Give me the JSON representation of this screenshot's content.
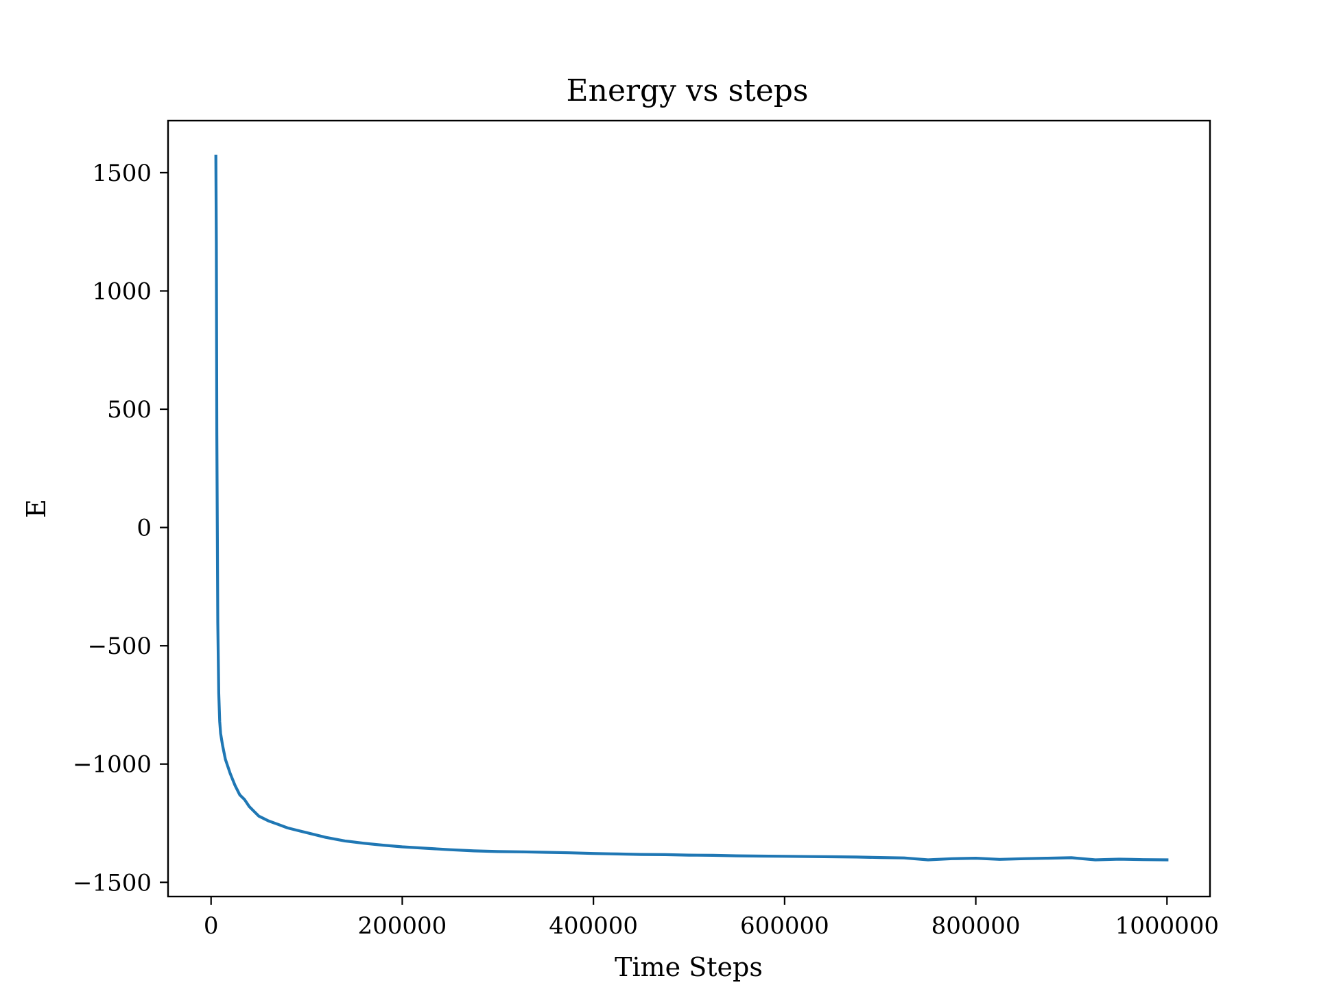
{
  "chart_data": {
    "type": "line",
    "title": "Energy vs steps",
    "xlabel": "Time Steps",
    "ylabel": "E",
    "xlim": [
      -45000,
      1045000
    ],
    "ylim": [
      -1560,
      1720
    ],
    "xticks": [
      0,
      200000,
      400000,
      600000,
      800000,
      1000000
    ],
    "xtick_labels": [
      "0",
      "200000",
      "400000",
      "600000",
      "800000",
      "1000000"
    ],
    "yticks": [
      -1500,
      -1000,
      -500,
      0,
      500,
      1000,
      1500
    ],
    "ytick_labels": [
      "−1500",
      "−1000",
      "−500",
      "0",
      "500",
      "1000",
      "1500"
    ],
    "grid": false,
    "line_color": "#1f77b4",
    "series": [
      {
        "x": [
          5000,
          5500,
          6000,
          7000,
          8000,
          9000,
          10000,
          12000,
          15000,
          20000,
          25000,
          30000,
          35000,
          40000,
          45000,
          50000,
          60000,
          70000,
          80000,
          90000,
          100000,
          120000,
          140000,
          160000,
          180000,
          200000,
          225000,
          250000,
          275000,
          300000,
          325000,
          350000,
          375000,
          400000,
          425000,
          450000,
          475000,
          500000,
          525000,
          550000,
          575000,
          600000,
          625000,
          650000,
          675000,
          700000,
          725000,
          750000,
          775000,
          800000,
          825000,
          850000,
          875000,
          900000,
          925000,
          950000,
          975000,
          1000000
        ],
        "y": [
          1570,
          1200,
          400,
          -400,
          -700,
          -820,
          -870,
          -920,
          -980,
          -1040,
          -1090,
          -1130,
          -1150,
          -1180,
          -1200,
          -1220,
          -1240,
          -1255,
          -1270,
          -1280,
          -1290,
          -1310,
          -1325,
          -1335,
          -1343,
          -1350,
          -1356,
          -1362,
          -1367,
          -1370,
          -1371,
          -1373,
          -1375,
          -1378,
          -1380,
          -1382,
          -1383,
          -1385,
          -1386,
          -1388,
          -1389,
          -1390,
          -1391,
          -1392,
          -1393,
          -1395,
          -1397,
          -1405,
          -1400,
          -1398,
          -1403,
          -1400,
          -1398,
          -1396,
          -1405,
          -1402,
          -1404,
          -1405
        ]
      }
    ]
  }
}
